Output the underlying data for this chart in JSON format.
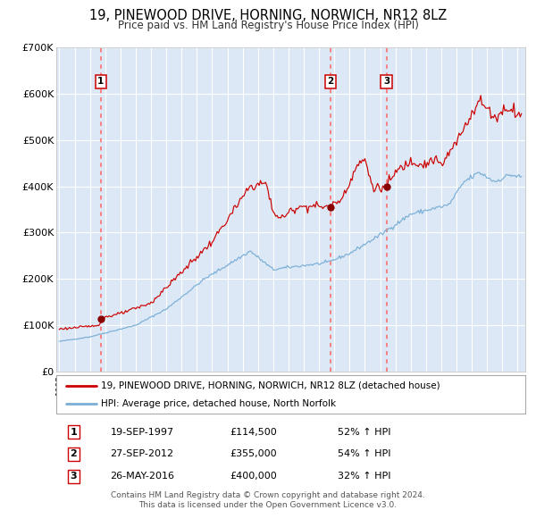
{
  "title": "19, PINEWOOD DRIVE, HORNING, NORWICH, NR12 8LZ",
  "subtitle": "Price paid vs. HM Land Registry's House Price Index (HPI)",
  "ylim": [
    0,
    700000
  ],
  "yticks": [
    0,
    100000,
    200000,
    300000,
    400000,
    500000,
    600000,
    700000
  ],
  "ytick_labels": [
    "£0",
    "£100K",
    "£200K",
    "£300K",
    "£400K",
    "£500K",
    "£600K",
    "£700K"
  ],
  "plot_bg_color": "#dce8f5",
  "grid_color": "#ffffff",
  "sale_dates_num": [
    1997.72,
    2012.75,
    2016.41
  ],
  "sale_prices": [
    114500,
    355000,
    400000
  ],
  "sale_labels": [
    "1",
    "2",
    "3"
  ],
  "legend_line1": "19, PINEWOOD DRIVE, HORNING, NORWICH, NR12 8LZ (detached house)",
  "legend_line2": "HPI: Average price, detached house, North Norfolk",
  "table_rows": [
    [
      "1",
      "19-SEP-1997",
      "£114,500",
      "52% ↑ HPI"
    ],
    [
      "2",
      "27-SEP-2012",
      "£355,000",
      "54% ↑ HPI"
    ],
    [
      "3",
      "26-MAY-2016",
      "£400,000",
      "32% ↑ HPI"
    ]
  ],
  "footer_line1": "Contains HM Land Registry data © Crown copyright and database right 2024.",
  "footer_line2": "This data is licensed under the Open Government Licence v3.0.",
  "red_line_color": "#cc0000",
  "blue_line_color": "#7aaed6",
  "dashed_vline_color": "#ff6666",
  "marker_color": "#880000",
  "xstart": 1994.8,
  "xend": 2025.5,
  "hpi_milestones": {
    "1995.0": 65000,
    "1997.0": 75000,
    "2000.0": 100000,
    "2002.0": 135000,
    "2004.5": 200000,
    "2007.5": 260000,
    "2009.0": 220000,
    "2010.0": 225000,
    "2012.5": 235000,
    "2014.0": 255000,
    "2016.0": 295000,
    "2018.0": 340000,
    "2020.5": 360000,
    "2021.5": 410000,
    "2022.5": 430000,
    "2023.5": 410000,
    "2024.5": 425000,
    "2025.2": 420000
  },
  "red_milestones": {
    "1995.0": 92000,
    "1996.5": 96000,
    "1997.5": 100000,
    "1998.0": 118000,
    "1999.0": 125000,
    "2001.0": 148000,
    "2003.0": 215000,
    "2005.0": 280000,
    "2007.5": 400000,
    "2008.5": 408000,
    "2009.0": 345000,
    "2009.5": 330000,
    "2010.5": 355000,
    "2011.5": 358000,
    "2012.75": 355000,
    "2013.5": 375000,
    "2014.5": 445000,
    "2015.0": 458000,
    "2015.5": 400000,
    "2016.0": 395000,
    "2016.4": 400000,
    "2017.0": 430000,
    "2018.0": 455000,
    "2019.0": 448000,
    "2019.5": 460000,
    "2020.0": 445000,
    "2021.0": 495000,
    "2022.0": 560000,
    "2022.5": 585000,
    "2023.0": 568000,
    "2023.5": 548000,
    "2024.0": 562000,
    "2024.5": 572000,
    "2025.2": 552000
  }
}
